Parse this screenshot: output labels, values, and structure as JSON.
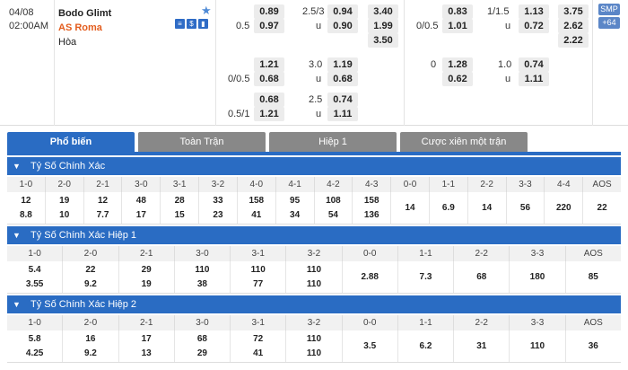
{
  "match": {
    "date": "04/08",
    "time": "02:00AM",
    "home": "Bodo Glimt",
    "away": "AS Roma",
    "draw": "Hòa",
    "badges": {
      "smp": "SMP",
      "more": "+64"
    }
  },
  "ft_odds": {
    "row1": {
      "hdp_home": "0.89",
      "line_ou": "2.5/3",
      "ou_over": "0.94",
      "x1": "3.40"
    },
    "row2": {
      "line_hdp": "0.5",
      "hdp_away": "0.97",
      "u": "u",
      "ou_under": "0.90",
      "x2": "1.99"
    },
    "row3": {
      "xd": "3.50"
    },
    "row4": {
      "hdp_home": "1.21",
      "line_ou": "3.0",
      "ou_over": "1.19"
    },
    "row5": {
      "line_hdp": "0/0.5",
      "hdp_away": "0.68",
      "u": "u",
      "ou_under": "0.68"
    },
    "row6": {
      "hdp_home": "0.68",
      "line_ou": "2.5",
      "ou_over": "0.74"
    },
    "row7": {
      "line_hdp": "0.5/1",
      "hdp_away": "1.21",
      "u": "u",
      "ou_under": "1.11"
    }
  },
  "h1_odds": {
    "row1": {
      "hdp_home": "0.83",
      "line_ou": "1/1.5",
      "ou_over": "1.13",
      "x1": "3.75"
    },
    "row2": {
      "line_hdp": "0/0.5",
      "hdp_away": "1.01",
      "u": "u",
      "ou_under": "0.72",
      "x2": "2.62"
    },
    "row3": {
      "xd": "2.22"
    },
    "row4": {
      "line_hdp": "0",
      "hdp_home": "1.28",
      "line_ou": "1.0",
      "ou_over": "0.74"
    },
    "row5": {
      "hdp_away": "0.62",
      "u": "u",
      "ou_under": "1.11"
    }
  },
  "tabs": [
    "Phổ biến",
    "Toàn Trận",
    "Hiệp 1",
    "Cược xiên một trận"
  ],
  "sections": [
    {
      "title": "Tỷ Số Chính Xác",
      "headers": [
        "1-0",
        "2-0",
        "2-1",
        "3-0",
        "3-1",
        "3-2",
        "4-0",
        "4-1",
        "4-2",
        "4-3",
        "0-0",
        "1-1",
        "2-2",
        "3-3",
        "4-4",
        "AOS"
      ],
      "values": [
        [
          "12",
          "8.8"
        ],
        [
          "19",
          "10"
        ],
        [
          "12",
          "7.7"
        ],
        [
          "48",
          "17"
        ],
        [
          "28",
          "15"
        ],
        [
          "33",
          "23"
        ],
        [
          "158",
          "41"
        ],
        [
          "95",
          "34"
        ],
        [
          "108",
          "54"
        ],
        [
          "158",
          "136"
        ],
        [
          "14"
        ],
        [
          "6.9"
        ],
        [
          "14"
        ],
        [
          "56"
        ],
        [
          "220"
        ],
        [
          "22"
        ]
      ]
    },
    {
      "title": "Tỷ Số Chính Xác Hiệp 1",
      "headers": [
        "1-0",
        "2-0",
        "2-1",
        "3-0",
        "3-1",
        "3-2",
        "0-0",
        "1-1",
        "2-2",
        "3-3",
        "AOS"
      ],
      "values": [
        [
          "5.4",
          "3.55"
        ],
        [
          "22",
          "9.2"
        ],
        [
          "29",
          "19"
        ],
        [
          "110",
          "38"
        ],
        [
          "110",
          "77"
        ],
        [
          "110",
          "110"
        ],
        [
          "2.88"
        ],
        [
          "7.3"
        ],
        [
          "68"
        ],
        [
          "180"
        ],
        [
          "85"
        ]
      ]
    },
    {
      "title": "Tỷ Số Chính Xác Hiệp 2",
      "headers": [
        "1-0",
        "2-0",
        "2-1",
        "3-0",
        "3-1",
        "3-2",
        "0-0",
        "1-1",
        "2-2",
        "3-3",
        "AOS"
      ],
      "values": [
        [
          "5.8",
          "4.25"
        ],
        [
          "16",
          "9.2"
        ],
        [
          "17",
          "13"
        ],
        [
          "68",
          "29"
        ],
        [
          "72",
          "41"
        ],
        [
          "110",
          "110"
        ],
        [
          "3.5"
        ],
        [
          "6.2"
        ],
        [
          "31"
        ],
        [
          "110"
        ],
        [
          "36"
        ]
      ]
    }
  ]
}
